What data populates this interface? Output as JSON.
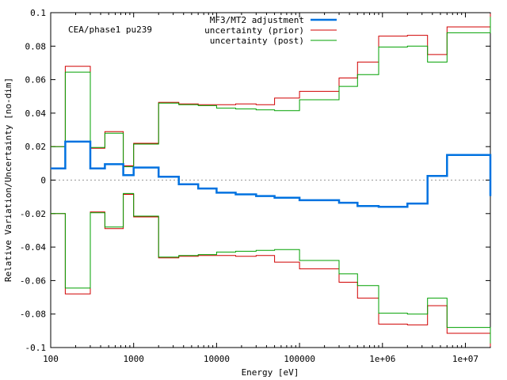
{
  "chart_data": {
    "type": "line",
    "step": true,
    "xscale": "log",
    "xlim": [
      100,
      20000000
    ],
    "ylim": [
      -0.1,
      0.1
    ],
    "xlabel": "Energy [eV]",
    "ylabel": "Relative Variation/Uncertainty [no-dim]",
    "annotation": "CEA/phase1 pu239",
    "zero_line": "dotted",
    "legend_position": "top-center",
    "x_ticks": [
      {
        "value": 100,
        "label": "100"
      },
      {
        "value": 1000,
        "label": "1000"
      },
      {
        "value": 10000,
        "label": "10000"
      },
      {
        "value": 100000,
        "label": "100000"
      },
      {
        "value": 1000000,
        "label": "1e+06"
      },
      {
        "value": 10000000,
        "label": "1e+07"
      }
    ],
    "y_ticks": [
      {
        "value": 0.1,
        "label": "0.1"
      },
      {
        "value": 0.08,
        "label": "0.08"
      },
      {
        "value": 0.06,
        "label": "0.06"
      },
      {
        "value": 0.04,
        "label": "0.04"
      },
      {
        "value": 0.02,
        "label": "0.02"
      },
      {
        "value": 0,
        "label": "0"
      },
      {
        "value": -0.02,
        "label": "-0.02"
      },
      {
        "value": -0.04,
        "label": "-0.04"
      },
      {
        "value": -0.06,
        "label": "-0.06"
      },
      {
        "value": -0.08,
        "label": "-0.08"
      },
      {
        "value": -0.1,
        "label": "-0.1"
      }
    ],
    "bin_edges": [
      100,
      150,
      300,
      450,
      750,
      1000,
      2000,
      3500,
      6000,
      10000,
      17000,
      30000,
      50000,
      100000,
      300000,
      500000,
      900000,
      2000000,
      3500000,
      6000000,
      20000000
    ],
    "series": [
      {
        "name": "MF3/MT2 adjustment",
        "color": "#0072e0",
        "width": 2.5,
        "symmetric": false,
        "values": [
          0.007,
          0.023,
          0.007,
          0.0095,
          0.003,
          0.0075,
          0.002,
          -0.0025,
          -0.005,
          -0.0075,
          -0.0085,
          -0.0095,
          -0.0105,
          -0.012,
          -0.0135,
          -0.0155,
          -0.016,
          -0.014,
          0.0025,
          0.015,
          -0.0095
        ]
      },
      {
        "name": "uncertainty (prior)",
        "color": "#d00000",
        "width": 1,
        "symmetric": true,
        "values": [
          0.02,
          0.068,
          0.019,
          0.029,
          0.0085,
          0.022,
          0.0465,
          0.0455,
          0.045,
          0.045,
          0.0455,
          0.045,
          0.049,
          0.053,
          0.061,
          0.0705,
          0.086,
          0.0865,
          0.075,
          0.0915,
          0.0995
        ]
      },
      {
        "name": "uncertainty (post)",
        "color": "#00a000",
        "width": 1,
        "symmetric": true,
        "values": [
          0.02,
          0.0645,
          0.0195,
          0.028,
          0.008,
          0.0215,
          0.046,
          0.045,
          0.0445,
          0.043,
          0.0425,
          0.042,
          0.0415,
          0.048,
          0.056,
          0.063,
          0.0795,
          0.08,
          0.0705,
          0.088,
          0.0975
        ]
      }
    ]
  }
}
